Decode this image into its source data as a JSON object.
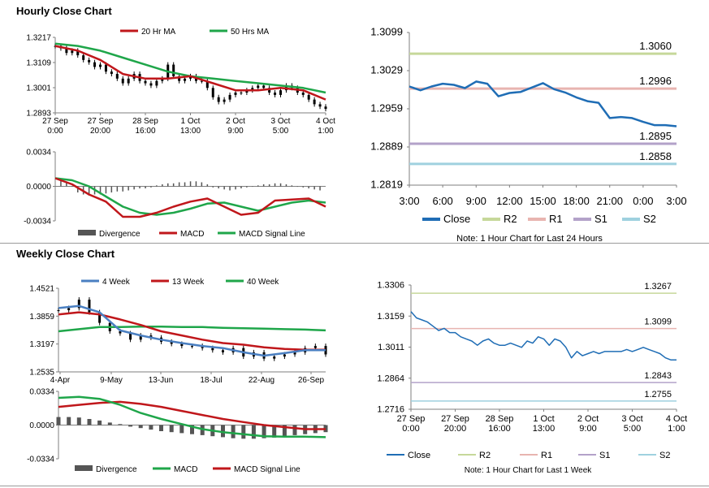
{
  "colors": {
    "close": "#1f6db5",
    "r2": "#c6d89a",
    "r1": "#e8b4b0",
    "s1": "#b3a2c9",
    "s2": "#9fd1df",
    "red": "#c0171b",
    "green": "#1fa64a",
    "blue": "#4a7fc1",
    "divergence": "#555555",
    "axis": "#7f7f7f"
  },
  "sections": {
    "hourly_title": "Hourly Close Chart",
    "weekly_title": "Weekly Close Chart"
  },
  "chart_data": [
    {
      "id": "hourly_price",
      "type": "line",
      "legend": [
        "20 Hr MA",
        "50 Hrs MA"
      ],
      "x_tick_labels": [
        "27 Sep\n0:00",
        "27 Sep\n20:00",
        "28 Sep\n16:00",
        "1 Oct\n13:00",
        "2 Oct\n9:00",
        "3 Oct\n5:00",
        "4 Oct\n1:00"
      ],
      "y_tick_labels": [
        "1.3217",
        "1.3109",
        "1.3001",
        "1.2893"
      ],
      "ylim": [
        1.2893,
        1.3217
      ],
      "xlim": [
        0,
        96
      ],
      "series": [
        {
          "name": "Price",
          "x": [
            0,
            2,
            4,
            6,
            8,
            10,
            12,
            14,
            16,
            18,
            20,
            22,
            24,
            26,
            28,
            30,
            32,
            34,
            36,
            38,
            40,
            42,
            44,
            46,
            48,
            50,
            52,
            54,
            56,
            58,
            60,
            62,
            64,
            66,
            68,
            70,
            72,
            74,
            76,
            78,
            80,
            82,
            84,
            86,
            88,
            90,
            92,
            94,
            96
          ],
          "values": [
            1.318,
            1.317,
            1.315,
            1.316,
            1.314,
            1.312,
            1.311,
            1.309,
            1.31,
            1.307,
            1.306,
            1.304,
            1.302,
            1.304,
            1.306,
            1.303,
            1.302,
            1.301,
            1.303,
            1.304,
            1.31,
            1.305,
            1.303,
            1.304,
            1.305,
            1.303,
            1.303,
            1.3,
            1.296,
            1.294,
            1.295,
            1.297,
            1.298,
            1.298,
            1.299,
            1.3,
            1.301,
            1.3,
            1.298,
            1.297,
            1.299,
            1.301,
            1.3,
            1.298,
            1.297,
            1.295,
            1.293,
            1.292,
            1.291
          ]
        },
        {
          "name": "20 Hr MA",
          "x": [
            0,
            8,
            16,
            24,
            32,
            40,
            48,
            56,
            64,
            72,
            80,
            88,
            96
          ],
          "values": [
            1.318,
            1.316,
            1.312,
            1.306,
            1.304,
            1.304,
            1.305,
            1.302,
            1.299,
            1.299,
            1.3,
            1.299,
            1.295
          ]
        },
        {
          "name": "50 Hrs MA",
          "x": [
            0,
            8,
            16,
            24,
            32,
            40,
            48,
            56,
            64,
            72,
            80,
            88,
            96
          ],
          "values": [
            1.319,
            1.318,
            1.316,
            1.313,
            1.31,
            1.307,
            1.305,
            1.304,
            1.303,
            1.302,
            1.301,
            1.3,
            1.298
          ]
        }
      ]
    },
    {
      "id": "hourly_macd",
      "type": "bar",
      "legend": [
        "Divergence",
        "MACD",
        "MACD Signal Line"
      ],
      "y_tick_labels": [
        "0.0034",
        "0.0000",
        "-0.0034"
      ],
      "ylim": [
        -0.0034,
        0.0034
      ],
      "xlim": [
        0,
        96
      ],
      "series": [
        {
          "name": "Divergence",
          "x": [
            2,
            4,
            6,
            8,
            10,
            12,
            14,
            16,
            18,
            20,
            22,
            24,
            26,
            28,
            30,
            32,
            34,
            36,
            38,
            40,
            42,
            44,
            46,
            48,
            50,
            52,
            54,
            56,
            58,
            60,
            62,
            64,
            66,
            68,
            70,
            72,
            74,
            76,
            78,
            80,
            82,
            84,
            86,
            88,
            90,
            92,
            94
          ],
          "values": [
            0.0006,
            0.0004,
            0.0,
            -0.0006,
            -0.0008,
            -0.0009,
            -0.0008,
            -0.0008,
            -0.0007,
            -0.0006,
            -0.0005,
            -0.0005,
            -0.0004,
            -0.0003,
            -0.0002,
            -0.0002,
            -0.0001,
            0.0001,
            0.0002,
            0.0003,
            0.0003,
            0.0004,
            0.0004,
            0.0005,
            0.0005,
            0.0004,
            0.0002,
            -0.0001,
            -0.0002,
            -0.0003,
            -0.0004,
            -0.0003,
            -0.0002,
            -0.0001,
            0.0,
            0.0001,
            0.0002,
            0.0002,
            0.0003,
            0.0003,
            0.0002,
            0.0001,
            0.0,
            -0.0001,
            -0.0002,
            -0.0003,
            -0.0004
          ]
        },
        {
          "name": "MACD",
          "x": [
            0,
            6,
            12,
            18,
            24,
            30,
            36,
            42,
            48,
            54,
            60,
            66,
            72,
            78,
            84,
            90,
            96
          ],
          "values": [
            0.0008,
            0.0002,
            -0.0008,
            -0.0015,
            -0.003,
            -0.003,
            -0.0026,
            -0.002,
            -0.0015,
            -0.0012,
            -0.002,
            -0.0028,
            -0.0026,
            -0.0014,
            -0.0013,
            -0.0012,
            -0.002
          ]
        },
        {
          "name": "MACD Signal Line",
          "x": [
            0,
            6,
            12,
            18,
            24,
            30,
            36,
            42,
            48,
            54,
            60,
            66,
            72,
            78,
            84,
            90,
            96
          ],
          "values": [
            0.0008,
            0.0006,
            0.0,
            -0.001,
            -0.002,
            -0.0026,
            -0.0028,
            -0.0026,
            -0.0022,
            -0.0017,
            -0.0016,
            -0.002,
            -0.0024,
            -0.002,
            -0.0016,
            -0.0014,
            -0.0016
          ]
        }
      ]
    },
    {
      "id": "hourly_levels",
      "type": "line",
      "legend": [
        "Close",
        "R2",
        "R1",
        "S1",
        "S2"
      ],
      "note": "Note: 1 Hour Chart for Last 24 Hours",
      "x_tick_labels": [
        "3:00",
        "6:00",
        "9:00",
        "12:00",
        "15:00",
        "18:00",
        "21:00",
        "0:00",
        "3:00"
      ],
      "y_tick_labels": [
        "1.3099",
        "1.3029",
        "1.2959",
        "1.2889",
        "1.2819"
      ],
      "ylim": [
        1.2819,
        1.3099
      ],
      "xlim": [
        0,
        24
      ],
      "series": [
        {
          "name": "Close",
          "x": [
            0,
            1,
            2,
            3,
            4,
            5,
            6,
            7,
            8,
            9,
            10,
            11,
            12,
            13,
            14,
            15,
            16,
            17,
            18,
            19,
            20,
            21,
            22,
            23,
            24
          ],
          "values": [
            1.3,
            1.2993,
            1.3,
            1.3005,
            1.3003,
            1.2997,
            1.3009,
            1.3005,
            1.2982,
            1.2988,
            1.299,
            1.2998,
            1.3006,
            1.2995,
            1.2989,
            1.298,
            1.2973,
            1.297,
            1.2942,
            1.2944,
            1.2942,
            1.2935,
            1.2929,
            1.2929,
            1.2927
          ]
        },
        {
          "name": "R2",
          "value": 1.306,
          "label": "1.3060"
        },
        {
          "name": "R1",
          "value": 1.2996,
          "label": "1.2996"
        },
        {
          "name": "S1",
          "value": 1.2895,
          "label": "1.2895"
        },
        {
          "name": "S2",
          "value": 1.2858,
          "label": "1.2858"
        }
      ]
    },
    {
      "id": "weekly_price",
      "type": "line",
      "legend": [
        "4 Week",
        "13 Week",
        "40 Week"
      ],
      "x_tick_labels": [
        "4-Apr",
        "9-May",
        "13-Jun",
        "18-Jul",
        "22-Aug",
        "26-Sep"
      ],
      "y_tick_labels": [
        "1.4521",
        "1.3859",
        "1.3197",
        "1.2535"
      ],
      "ylim": [
        1.2535,
        1.4521
      ],
      "xlim": [
        0,
        26
      ],
      "series": [
        {
          "name": "Price",
          "x": [
            0,
            1,
            2,
            3,
            4,
            5,
            6,
            7,
            8,
            9,
            10,
            11,
            12,
            13,
            14,
            15,
            16,
            17,
            18,
            19,
            20,
            21,
            22,
            23,
            24,
            25,
            26
          ],
          "values": [
            1.4,
            1.405,
            1.425,
            1.395,
            1.37,
            1.35,
            1.345,
            1.33,
            1.34,
            1.335,
            1.325,
            1.32,
            1.315,
            1.315,
            1.31,
            1.305,
            1.3,
            1.31,
            1.29,
            1.3,
            1.285,
            1.29,
            1.295,
            1.3,
            1.31,
            1.315,
            1.295
          ]
        },
        {
          "name": "4 Week",
          "x": [
            0,
            2,
            4,
            6,
            8,
            10,
            12,
            14,
            16,
            18,
            20,
            22,
            24,
            26
          ],
          "values": [
            1.405,
            1.41,
            1.395,
            1.352,
            1.34,
            1.33,
            1.322,
            1.315,
            1.31,
            1.3,
            1.292,
            1.298,
            1.305,
            1.305
          ]
        },
        {
          "name": "13 Week",
          "x": [
            0,
            2,
            4,
            6,
            8,
            10,
            12,
            14,
            16,
            18,
            20,
            22,
            24,
            26
          ],
          "values": [
            1.39,
            1.395,
            1.39,
            1.378,
            1.365,
            1.35,
            1.34,
            1.33,
            1.322,
            1.318,
            1.312,
            1.308,
            1.306,
            1.306
          ]
        },
        {
          "name": "40 Week",
          "x": [
            0,
            2,
            4,
            6,
            8,
            10,
            12,
            14,
            16,
            18,
            20,
            22,
            24,
            26
          ],
          "values": [
            1.35,
            1.355,
            1.36,
            1.36,
            1.361,
            1.361,
            1.36,
            1.36,
            1.358,
            1.357,
            1.356,
            1.355,
            1.354,
            1.352
          ]
        }
      ]
    },
    {
      "id": "weekly_macd",
      "type": "bar",
      "legend": [
        "Divergence",
        "MACD",
        "MACD Signal Line"
      ],
      "y_tick_labels": [
        "0.0334",
        "0.0000",
        "-0.0334"
      ],
      "ylim": [
        -0.0334,
        0.0334
      ],
      "xlim": [
        0,
        26
      ],
      "series": [
        {
          "name": "Divergence",
          "x": [
            0,
            1,
            2,
            3,
            4,
            5,
            6,
            7,
            8,
            9,
            10,
            11,
            12,
            13,
            14,
            15,
            16,
            17,
            18,
            19,
            20,
            21,
            22,
            23,
            24,
            25,
            26
          ],
          "values": [
            0.008,
            0.008,
            0.0075,
            0.006,
            0.0045,
            0.0025,
            0.001,
            -0.0015,
            -0.003,
            -0.0045,
            -0.006,
            -0.007,
            -0.008,
            -0.009,
            -0.01,
            -0.011,
            -0.012,
            -0.013,
            -0.0135,
            -0.0135,
            -0.013,
            -0.0125,
            -0.0115,
            -0.01,
            -0.009,
            -0.008,
            -0.007
          ]
        },
        {
          "name": "MACD",
          "x": [
            0,
            2,
            4,
            6,
            8,
            10,
            12,
            14,
            16,
            18,
            20,
            22,
            24,
            26
          ],
          "values": [
            0.027,
            0.028,
            0.026,
            0.02,
            0.012,
            0.006,
            0.001,
            -0.004,
            -0.007,
            -0.009,
            -0.011,
            -0.0115,
            -0.0115,
            -0.012
          ]
        },
        {
          "name": "MACD Signal Line",
          "x": [
            0,
            2,
            4,
            6,
            8,
            10,
            12,
            14,
            16,
            18,
            20,
            22,
            24,
            26
          ],
          "values": [
            0.018,
            0.02,
            0.022,
            0.023,
            0.021,
            0.018,
            0.014,
            0.01,
            0.006,
            0.003,
            0.0,
            -0.002,
            -0.004,
            -0.004
          ]
        }
      ]
    },
    {
      "id": "weekly_levels",
      "type": "line",
      "legend": [
        "Close",
        "R2",
        "R1",
        "S1",
        "S2"
      ],
      "note": "Note: 1 Hour Chart for Last 1 Week",
      "x_tick_labels": [
        "27 Sep\n0:00",
        "27 Sep\n20:00",
        "28 Sep\n16:00",
        "1 Oct\n13:00",
        "2 Oct\n9:00",
        "3 Oct\n5:00",
        "4 Oct\n1:00"
      ],
      "y_tick_labels": [
        "1.3306",
        "1.3159",
        "1.3011",
        "1.2864",
        "1.2716"
      ],
      "ylim": [
        1.2716,
        1.3306
      ],
      "xlim": [
        0,
        96
      ],
      "series": [
        {
          "name": "Close",
          "x": [
            0,
            2,
            4,
            6,
            8,
            10,
            12,
            14,
            16,
            18,
            20,
            22,
            24,
            26,
            28,
            30,
            32,
            34,
            36,
            38,
            40,
            42,
            44,
            46,
            48,
            50,
            52,
            54,
            56,
            58,
            60,
            62,
            64,
            66,
            68,
            70,
            72,
            74,
            76,
            78,
            80,
            82,
            84,
            86,
            88,
            90,
            92,
            94,
            96
          ],
          "values": [
            1.318,
            1.315,
            1.314,
            1.313,
            1.311,
            1.309,
            1.31,
            1.308,
            1.308,
            1.306,
            1.305,
            1.304,
            1.302,
            1.304,
            1.305,
            1.303,
            1.302,
            1.302,
            1.303,
            1.302,
            1.301,
            1.304,
            1.303,
            1.306,
            1.305,
            1.302,
            1.305,
            1.304,
            1.301,
            1.296,
            1.299,
            1.297,
            1.298,
            1.299,
            1.298,
            1.299,
            1.299,
            1.299,
            1.299,
            1.3,
            1.299,
            1.3,
            1.301,
            1.3,
            1.299,
            1.298,
            1.296,
            1.295,
            1.295
          ]
        },
        {
          "name": "R2",
          "value": 1.3267,
          "label": "1.3267"
        },
        {
          "name": "R1",
          "value": 1.3099,
          "label": "1.3099"
        },
        {
          "name": "S1",
          "value": 1.2843,
          "label": "1.2843"
        },
        {
          "name": "S2",
          "value": 1.2755,
          "label": "1.2755"
        }
      ]
    }
  ]
}
